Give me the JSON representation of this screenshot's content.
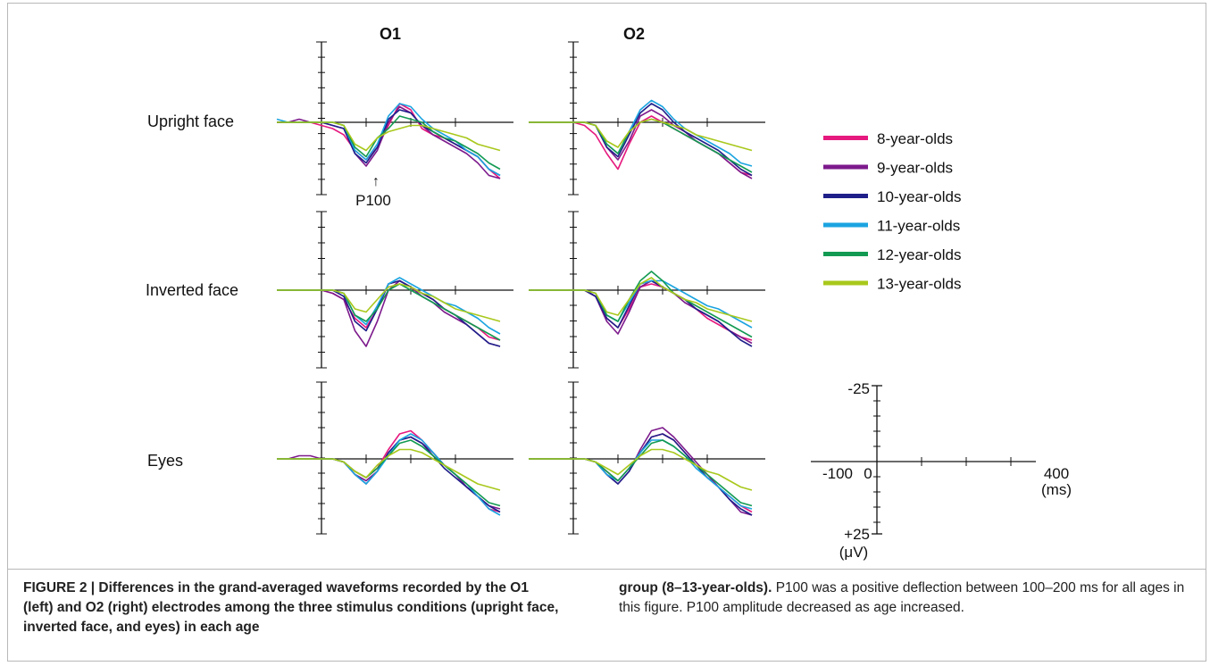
{
  "figure": {
    "column_titles": [
      "O1",
      "O2"
    ],
    "row_labels": [
      "Upright face",
      "Inverted face",
      "Eyes"
    ],
    "annotation": "P100",
    "annotation_arrow": "↑",
    "legend": [
      {
        "label": "8-year-olds",
        "color": "#e6197e"
      },
      {
        "label": "9-year-olds",
        "color": "#7d1a8c"
      },
      {
        "label": "10-year-olds",
        "color": "#1f1f8a"
      },
      {
        "label": "11-year-olds",
        "color": "#1ba4e0"
      },
      {
        "label": "12-year-olds",
        "color": "#139a52"
      },
      {
        "label": "13-year-olds",
        "color": "#a8c81c"
      }
    ],
    "scale_bar": {
      "y_top": "-25",
      "y_bottom": "+25",
      "y_unit": "(μV)",
      "x_left": "-100",
      "x_zero": "0",
      "x_right": "400",
      "x_unit": "(ms)"
    }
  },
  "caption": {
    "left_bold": "FIGURE 2 | Differences in the grand-averaged waveforms recorded by the O1 (left) and O2 (right) electrodes among the three stimulus conditions (upright face, inverted face, and eyes) in each age",
    "right_bold": "group (8–13-year-olds).",
    "right_text": " P100 was a positive deflection between 100–200 ms for all ages in this figure. P100 amplitude decreased as age increased."
  },
  "chart_data": {
    "type": "line",
    "xlabel": "(ms)",
    "ylabel": "(μV)",
    "xlim": [
      -100,
      400
    ],
    "ylim": [
      25,
      -25
    ],
    "y_axis_inverted": true,
    "x": [
      -100,
      -75,
      -50,
      -25,
      0,
      25,
      50,
      75,
      100,
      125,
      150,
      175,
      200,
      225,
      250,
      275,
      300,
      325,
      350,
      375,
      400
    ],
    "panels": [
      {
        "electrode": "O1",
        "condition": "Upright face",
        "series": [
          {
            "name": "8-year-olds",
            "values": [
              0,
              0,
              0,
              0,
              1,
              2,
              4,
              9,
              12,
              8,
              1,
              -6,
              -4,
              2,
              4,
              5,
              7,
              9,
              11,
              15,
              18
            ]
          },
          {
            "name": "9-year-olds",
            "values": [
              0,
              0,
              -1,
              0,
              0,
              1,
              2,
              10,
              14,
              9,
              0,
              -5,
              -3,
              1,
              4,
              6,
              8,
              10,
              13,
              17,
              18
            ]
          },
          {
            "name": "10-year-olds",
            "values": [
              0,
              0,
              0,
              0,
              0,
              1,
              2,
              10,
              13,
              8,
              -1,
              -4,
              -3,
              1,
              3,
              5,
              7,
              9,
              11,
              15,
              17
            ]
          },
          {
            "name": "11-year-olds",
            "values": [
              -1,
              0,
              0,
              0,
              0,
              0,
              1,
              9,
              12,
              7,
              -2,
              -6,
              -5,
              -1,
              2,
              4,
              6,
              9,
              11,
              15,
              17
            ]
          },
          {
            "name": "12-year-olds",
            "values": [
              0,
              0,
              0,
              0,
              0,
              0,
              1,
              8,
              11,
              5,
              2,
              -2,
              -1,
              0,
              3,
              5,
              6,
              8,
              10,
              13,
              15
            ]
          },
          {
            "name": "13-year-olds",
            "values": [
              0,
              0,
              0,
              0,
              0,
              0,
              1,
              7,
              9,
              5,
              3,
              2,
              1,
              1,
              2,
              3,
              4,
              5,
              7,
              8,
              9
            ]
          }
        ]
      },
      {
        "electrode": "O2",
        "condition": "Upright face",
        "series": [
          {
            "name": "8-year-olds",
            "values": [
              0,
              0,
              0,
              0,
              0,
              1,
              4,
              10,
              15,
              7,
              0,
              -2,
              0,
              2,
              4,
              6,
              8,
              10,
              13,
              16,
              17
            ]
          },
          {
            "name": "9-year-olds",
            "values": [
              0,
              0,
              0,
              0,
              0,
              0,
              1,
              8,
              12,
              6,
              -2,
              -4,
              -2,
              1,
              3,
              6,
              8,
              10,
              13,
              16,
              18
            ]
          },
          {
            "name": "10-year-olds",
            "values": [
              0,
              0,
              0,
              0,
              0,
              0,
              1,
              8,
              11,
              4,
              -3,
              -6,
              -4,
              0,
              3,
              5,
              7,
              9,
              12,
              15,
              17
            ]
          },
          {
            "name": "11-year-olds",
            "values": [
              0,
              0,
              0,
              0,
              0,
              0,
              1,
              7,
              10,
              3,
              -4,
              -7,
              -5,
              -1,
              2,
              4,
              6,
              8,
              10,
              13,
              14
            ]
          },
          {
            "name": "12-year-olds",
            "values": [
              0,
              0,
              0,
              0,
              0,
              0,
              1,
              7,
              10,
              3,
              0,
              -1,
              0,
              2,
              4,
              6,
              8,
              10,
              12,
              14,
              16
            ]
          },
          {
            "name": "13-year-olds",
            "values": [
              0,
              0,
              0,
              0,
              0,
              0,
              1,
              6,
              8,
              3,
              0,
              -1,
              0,
              1,
              2,
              4,
              5,
              6,
              7,
              8,
              9
            ]
          }
        ]
      },
      {
        "electrode": "O1",
        "condition": "Inverted face",
        "series": [
          {
            "name": "8-year-olds",
            "values": [
              0,
              0,
              0,
              0,
              0,
              1,
              3,
              9,
              12,
              6,
              -2,
              -3,
              -1,
              1,
              3,
              6,
              8,
              10,
              12,
              15,
              16
            ]
          },
          {
            "name": "9-year-olds",
            "values": [
              0,
              0,
              0,
              0,
              0,
              1,
              3,
              13,
              18,
              10,
              0,
              -3,
              -1,
              2,
              4,
              7,
              9,
              11,
              14,
              17,
              18
            ]
          },
          {
            "name": "10-year-olds",
            "values": [
              0,
              0,
              0,
              0,
              0,
              0,
              2,
              10,
              13,
              6,
              -2,
              -3,
              -1,
              1,
              3,
              6,
              8,
              11,
              14,
              17,
              18
            ]
          },
          {
            "name": "11-year-olds",
            "values": [
              0,
              0,
              0,
              0,
              0,
              0,
              1,
              8,
              11,
              5,
              -2,
              -4,
              -2,
              0,
              2,
              4,
              5,
              7,
              9,
              12,
              14
            ]
          },
          {
            "name": "12-year-olds",
            "values": [
              0,
              0,
              0,
              0,
              0,
              0,
              1,
              8,
              10,
              6,
              0,
              -2,
              0,
              2,
              4,
              6,
              8,
              10,
              12,
              14,
              16
            ]
          },
          {
            "name": "13-year-olds",
            "values": [
              0,
              0,
              0,
              0,
              0,
              0,
              1,
              6,
              7,
              3,
              -1,
              -2,
              -1,
              1,
              2,
              4,
              6,
              7,
              8,
              9,
              10
            ]
          }
        ]
      },
      {
        "electrode": "O2",
        "condition": "Inverted face",
        "series": [
          {
            "name": "8-year-olds",
            "values": [
              0,
              0,
              0,
              0,
              0,
              0,
              2,
              9,
              12,
              6,
              -1,
              -2,
              -1,
              1,
              3,
              6,
              9,
              11,
              13,
              15,
              16
            ]
          },
          {
            "name": "9-year-olds",
            "values": [
              0,
              0,
              0,
              0,
              0,
              0,
              2,
              10,
              14,
              7,
              -1,
              -3,
              -1,
              1,
              4,
              6,
              8,
              10,
              13,
              15,
              17
            ]
          },
          {
            "name": "10-year-olds",
            "values": [
              0,
              0,
              0,
              0,
              0,
              0,
              2,
              9,
              12,
              5,
              -2,
              -3,
              -1,
              1,
              3,
              6,
              8,
              10,
              13,
              16,
              18
            ]
          },
          {
            "name": "11-year-olds",
            "values": [
              0,
              0,
              0,
              0,
              0,
              0,
              1,
              8,
              10,
              4,
              -2,
              -3,
              -3,
              -1,
              1,
              3,
              5,
              6,
              8,
              10,
              12
            ]
          },
          {
            "name": "12-year-olds",
            "values": [
              0,
              0,
              0,
              0,
              0,
              0,
              1,
              8,
              10,
              3,
              -3,
              -6,
              -3,
              1,
              3,
              5,
              7,
              9,
              11,
              13,
              15
            ]
          },
          {
            "name": "13-year-olds",
            "values": [
              0,
              0,
              0,
              0,
              0,
              0,
              1,
              7,
              8,
              3,
              -2,
              -4,
              -1,
              1,
              3,
              4,
              6,
              7,
              8,
              9,
              10
            ]
          }
        ]
      },
      {
        "electrode": "O1",
        "condition": "Eyes",
        "series": [
          {
            "name": "8-year-olds",
            "values": [
              0,
              0,
              0,
              0,
              0,
              0,
              1,
              4,
              6,
              3,
              -3,
              -8,
              -9,
              -6,
              -2,
              2,
              5,
              9,
              12,
              16,
              17
            ]
          },
          {
            "name": "9-year-olds",
            "values": [
              0,
              0,
              -1,
              -1,
              0,
              0,
              1,
              5,
              7,
              4,
              -2,
              -6,
              -7,
              -5,
              -2,
              2,
              5,
              9,
              12,
              15,
              16
            ]
          },
          {
            "name": "10-year-olds",
            "values": [
              0,
              0,
              0,
              0,
              0,
              0,
              1,
              5,
              8,
              4,
              -2,
              -6,
              -7,
              -5,
              -1,
              3,
              6,
              9,
              12,
              15,
              17
            ]
          },
          {
            "name": "11-year-olds",
            "values": [
              0,
              0,
              0,
              0,
              0,
              0,
              1,
              5,
              8,
              4,
              -1,
              -6,
              -8,
              -6,
              -2,
              2,
              5,
              8,
              12,
              16,
              18
            ]
          },
          {
            "name": "12-year-olds",
            "values": [
              0,
              0,
              0,
              0,
              0,
              0,
              1,
              4,
              6,
              3,
              -1,
              -5,
              -6,
              -4,
              -1,
              2,
              5,
              8,
              11,
              14,
              15
            ]
          },
          {
            "name": "13-year-olds",
            "values": [
              0,
              0,
              0,
              0,
              0,
              0,
              1,
              4,
              6,
              2,
              -1,
              -3,
              -3,
              -2,
              0,
              2,
              4,
              6,
              8,
              9,
              10
            ]
          }
        ]
      },
      {
        "electrode": "O2",
        "condition": "Eyes",
        "series": [
          {
            "name": "8-year-olds",
            "values": [
              0,
              0,
              0,
              0,
              0,
              0,
              1,
              4,
              7,
              3,
              -2,
              -7,
              -8,
              -6,
              -2,
              2,
              5,
              9,
              12,
              15,
              17
            ]
          },
          {
            "name": "9-year-olds",
            "values": [
              0,
              0,
              0,
              0,
              0,
              0,
              1,
              5,
              8,
              4,
              -3,
              -9,
              -10,
              -7,
              -3,
              1,
              5,
              9,
              13,
              17,
              18
            ]
          },
          {
            "name": "10-year-olds",
            "values": [
              0,
              0,
              0,
              0,
              0,
              0,
              1,
              5,
              8,
              4,
              -2,
              -7,
              -8,
              -6,
              -2,
              2,
              6,
              9,
              13,
              16,
              18
            ]
          },
          {
            "name": "11-year-olds",
            "values": [
              0,
              0,
              0,
              0,
              0,
              0,
              1,
              5,
              7,
              3,
              -2,
              -6,
              -6,
              -4,
              -1,
              3,
              6,
              9,
              12,
              15,
              16
            ]
          },
          {
            "name": "12-year-olds",
            "values": [
              0,
              0,
              0,
              0,
              0,
              0,
              1,
              4,
              7,
              3,
              -1,
              -5,
              -6,
              -4,
              -1,
              2,
              5,
              8,
              11,
              14,
              15
            ]
          },
          {
            "name": "13-year-olds",
            "values": [
              0,
              0,
              0,
              0,
              0,
              0,
              1,
              3,
              5,
              2,
              -1,
              -3,
              -3,
              -2,
              0,
              2,
              4,
              5,
              7,
              9,
              10
            ]
          }
        ]
      }
    ]
  }
}
